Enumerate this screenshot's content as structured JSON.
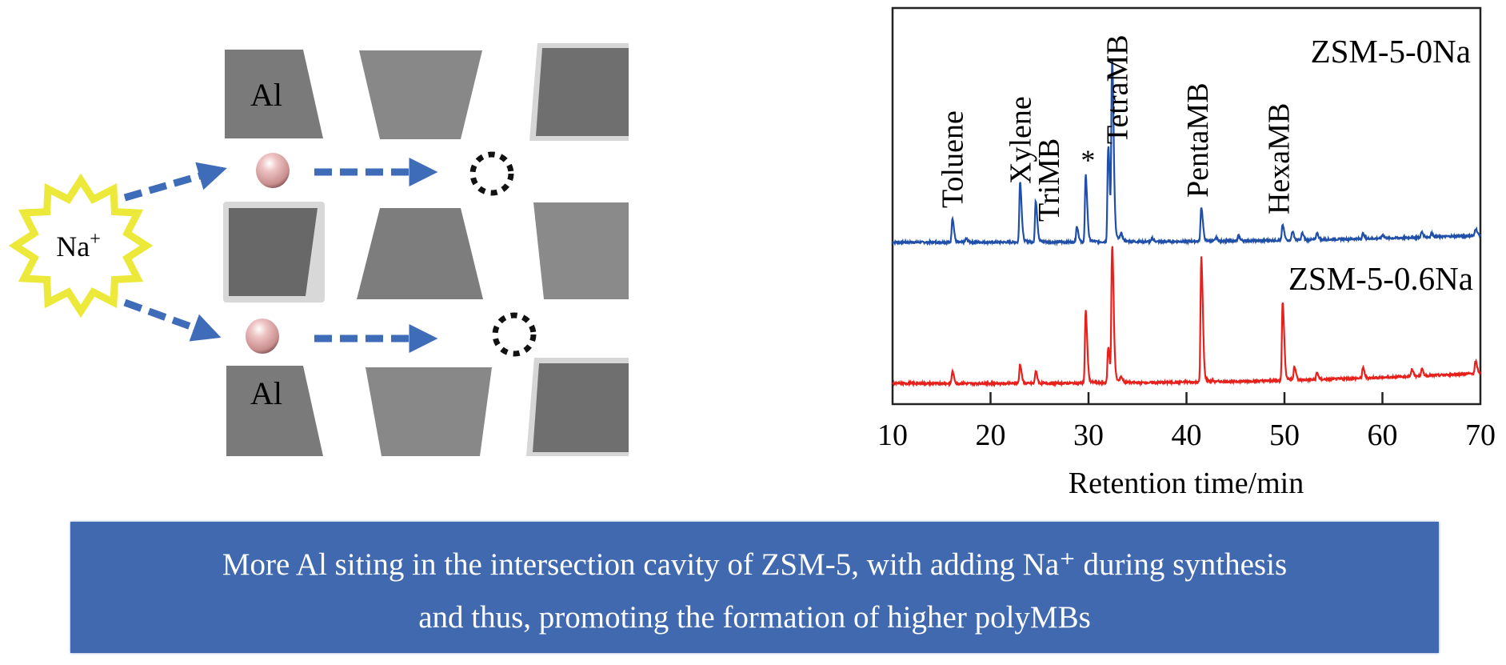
{
  "diagram": {
    "al_label_top": "Al",
    "al_label_bottom": "Al",
    "na_label": "Na",
    "na_charge": "+",
    "colors": {
      "star": "#ece93a",
      "arrow": "#3f6cb8",
      "sphere": "#e8b4b4",
      "block_dark": "#6b6b6b",
      "block_mid": "#7d7d7d",
      "block_light": "#8a8a8a"
    }
  },
  "chart_data": {
    "type": "line",
    "xlabel": "Retention time/min",
    "ylabel": "",
    "xlim": [
      10,
      70
    ],
    "ylim": [
      -12,
      218
    ],
    "x_ticks": [
      "10",
      "20",
      "30",
      "40",
      "50",
      "60",
      "70"
    ],
    "x_tick_values": [
      10,
      20,
      30,
      40,
      50,
      60,
      70
    ],
    "grid": false,
    "series": [
      {
        "name": "ZSM-5-0Na",
        "color": "#1f4fa8",
        "offset": 82,
        "baseline_drift": 4,
        "peaks": [
          [
            16.1,
            14
          ],
          [
            17.5,
            2
          ],
          [
            23.0,
            34
          ],
          [
            24.6,
            23
          ],
          [
            28.8,
            9
          ],
          [
            29.7,
            37
          ],
          [
            32.0,
            54
          ],
          [
            32.4,
            100
          ],
          [
            33.3,
            4
          ],
          [
            36.5,
            2
          ],
          [
            41.5,
            19
          ],
          [
            43.0,
            2
          ],
          [
            45.3,
            3
          ],
          [
            49.8,
            9
          ],
          [
            50.8,
            5
          ],
          [
            51.8,
            4
          ],
          [
            53.3,
            4
          ],
          [
            58.0,
            3
          ],
          [
            60.0,
            2
          ],
          [
            64.0,
            3
          ],
          [
            65.0,
            2
          ],
          [
            69.5,
            4
          ]
        ]
      },
      {
        "name": "ZSM-5-0.6Na",
        "color": "#e8201c",
        "offset": 0,
        "baseline_drift": 6,
        "peaks": [
          [
            16.1,
            7
          ],
          [
            23.0,
            11
          ],
          [
            24.6,
            7
          ],
          [
            29.7,
            40
          ],
          [
            32.0,
            20
          ],
          [
            32.4,
            76
          ],
          [
            33.3,
            3
          ],
          [
            41.5,
            69
          ],
          [
            49.8,
            44
          ],
          [
            51.0,
            8
          ],
          [
            53.3,
            4
          ],
          [
            58.0,
            6
          ],
          [
            63.0,
            4
          ],
          [
            64.0,
            4
          ],
          [
            69.5,
            7
          ]
        ]
      }
    ],
    "annotations": [
      {
        "text": "Toluene",
        "x": 16.1
      },
      {
        "text": "Xylene",
        "x": 23.0
      },
      {
        "text": "TriMB",
        "x": 25.9
      },
      {
        "text": "*",
        "x": 29.7
      },
      {
        "text": "TetraMB",
        "x": 32.9
      },
      {
        "text": "PentaMB",
        "x": 41.1
      },
      {
        "text": "HexaMB",
        "x": 49.4
      }
    ]
  },
  "banner": {
    "line1": "More Al siting in the intersection cavity of ZSM-5, with adding Na⁺ during synthesis",
    "line2": "and thus, promoting the formation of higher polyMBs"
  }
}
